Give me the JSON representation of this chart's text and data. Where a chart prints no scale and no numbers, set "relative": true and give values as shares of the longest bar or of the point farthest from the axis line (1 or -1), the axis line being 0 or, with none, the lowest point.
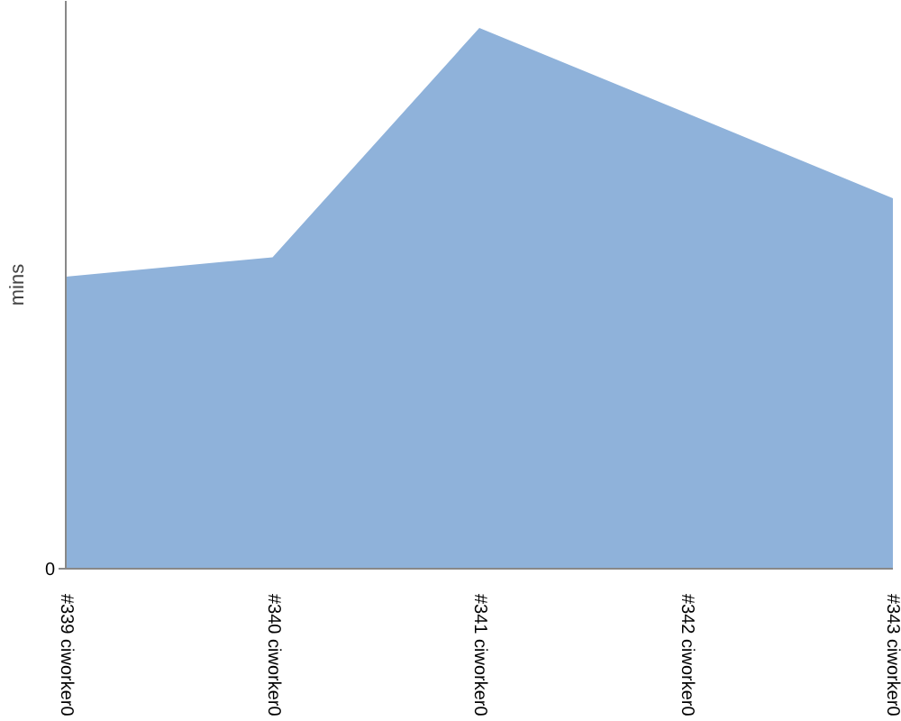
{
  "chart_data": {
    "type": "area",
    "ylabel": "mins",
    "relative": true,
    "annotations": [
      "0"
    ],
    "categories": [
      "#339 ciworker0",
      "#340 ciworker0",
      "#341 ciworker0",
      "#342 ciworker0",
      "#343 ciworker0"
    ],
    "series": [
      {
        "color": "#8fb2da",
        "values": [
          0.54,
          0.576,
          1,
          0.843,
          0.685
        ]
      }
    ],
    "grid": false
  }
}
